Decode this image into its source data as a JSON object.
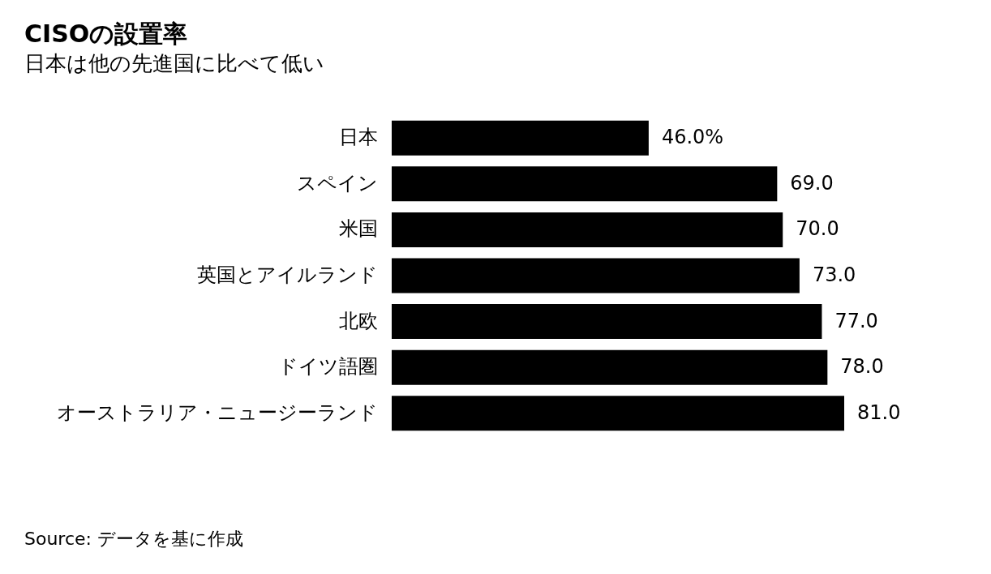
{
  "chart_data": {
    "type": "bar",
    "orientation": "horizontal",
    "title": "CISOの設置率",
    "subtitle": "日本は他の先進国に比べて低い",
    "categories": [
      "日本",
      "スペイン",
      "米国",
      "英国とアイルランド",
      "北欧",
      "ドイツ語圏",
      "オーストラリア・ニュージーランド"
    ],
    "values": [
      46.0,
      69.0,
      70.0,
      73.0,
      77.0,
      78.0,
      81.0
    ],
    "value_labels": [
      "46.0%",
      "69.0",
      "70.0",
      "73.0",
      "77.0",
      "78.0",
      "81.0"
    ],
    "color": "#000000",
    "annotations": [
      "Source: データを基に作成"
    ]
  }
}
